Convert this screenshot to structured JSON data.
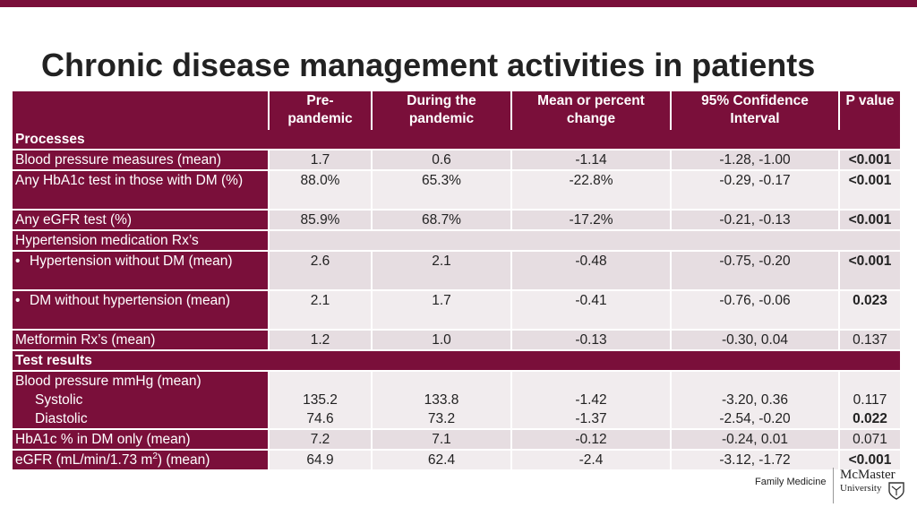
{
  "title": "Chronic disease management activities in patients",
  "headers": [
    "",
    "Pre-\npandemic",
    "During the\npandemic",
    "Mean or percent\nchange",
    "95% Confidence\nInterval",
    "P value"
  ],
  "sections": {
    "processes": "Processes",
    "test_results": "Test results"
  },
  "rows": [
    {
      "label": "Blood pressure measures (mean)",
      "pre": "1.7",
      "during": "0.6",
      "change": "-1.14",
      "ci": "-1.28, -1.00",
      "p": "<0.001"
    },
    {
      "label": "Any HbA1c test in those with DM (%)",
      "pre": "88.0%",
      "during": "65.3%",
      "change": "-22.8%",
      "ci": "-0.29, -0.17",
      "p": "<0.001"
    },
    {
      "label": "Any eGFR test (%)",
      "pre": "85.9%",
      "during": "68.7%",
      "change": "-17.2%",
      "ci": "-0.21, -0.13",
      "p": "<0.001"
    },
    {
      "label": "Hypertension medication Rx’s"
    },
    {
      "label": "Hypertension without DM (mean)",
      "pre": "2.6",
      "during": "2.1",
      "change": "-0.48",
      "ci": "-0.75, -0.20",
      "p": "<0.001"
    },
    {
      "label": "DM without hypertension (mean)",
      "pre": "2.1",
      "during": "1.7",
      "change": "-0.41",
      "ci": "-0.76, -0.06",
      "p": "0.023"
    },
    {
      "label": "Metformin Rx’s (mean)",
      "pre": "1.2",
      "during": "1.0",
      "change": "-0.13",
      "ci": "-0.30, 0.04",
      "p": "0.137"
    }
  ],
  "bp": {
    "label": "Blood pressure mmHg (mean)",
    "systolic": {
      "label": "Systolic",
      "pre": "135.2",
      "during": "133.8",
      "change": "-1.42",
      "ci": "-3.20, 0.36",
      "p": "0.117"
    },
    "diastolic": {
      "label": "Diastolic",
      "pre": "74.6",
      "during": "73.2",
      "change": "-1.37",
      "ci": "-2.54, -0.20",
      "p": "0.022"
    }
  },
  "rows2": [
    {
      "label": "HbA1c % in DM only (mean)",
      "pre": "7.2",
      "during": "7.1",
      "change": "-0.12",
      "ci": "-0.24, 0.01",
      "p": "0.071"
    },
    {
      "label_a": "eGFR (mL/min/1.73 m",
      "label_sup": "2",
      "label_b": ") (mean)",
      "pre": "64.9",
      "during": "62.4",
      "change": "-2.4",
      "ci": "-3.12, -1.72",
      "p": "<0.001"
    }
  ],
  "footer": {
    "department": "Family Medicine",
    "logo_line1": "McMaster",
    "logo_line2": "University"
  },
  "colors": {
    "brand": "#7a0f3a",
    "row_odd": "#e6dde1",
    "row_even": "#f1ecee"
  }
}
